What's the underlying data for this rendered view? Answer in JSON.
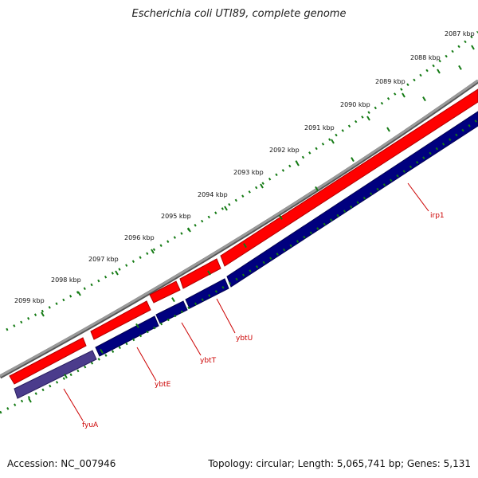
{
  "title": "Escherichia coli UTI89, complete genome",
  "footer": {
    "accession": "Accession: NC_007946",
    "topology": "Topology: circular; Length: 5,065,741 bp; Genes: 5,131"
  },
  "colors": {
    "backbone": "#8a8a8a",
    "forward_strand": "#ff0000",
    "reverse_strand": "#00007f",
    "reverse_strand_light": "#4b3c8c",
    "ticks": "#137a13",
    "label": "#cc0000"
  },
  "ruler_labels": [
    "2087 kbp",
    "2088 kbp",
    "2089 kbp",
    "2090 kbp",
    "2091 kbp",
    "2092 kbp",
    "2093 kbp",
    "2094 kbp",
    "2095 kbp",
    "2096 kbp",
    "2097 kbp",
    "2098 kbp",
    "2099 kbp"
  ],
  "genes": [
    {
      "name": "irp1",
      "strand": "reverse"
    },
    {
      "name": "ybtU",
      "strand": "reverse"
    },
    {
      "name": "ybtT",
      "strand": "reverse"
    },
    {
      "name": "ybtE",
      "strand": "reverse"
    },
    {
      "name": "fyuA",
      "strand": "reverse"
    }
  ]
}
